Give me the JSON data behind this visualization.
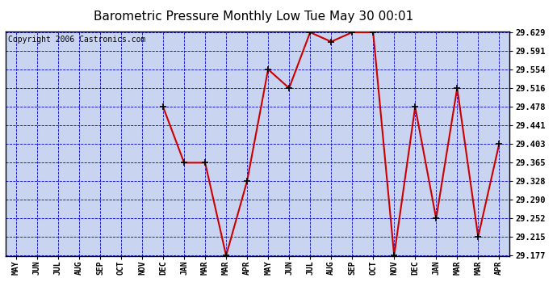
{
  "title": "Barometric Pressure Monthly Low Tue May 30 00:01",
  "copyright": "Copyright 2006 Castronics.com",
  "x_labels": [
    "MAY",
    "JUN",
    "JUL",
    "AUG",
    "SEP",
    "OCT",
    "NOV",
    "DEC",
    "JAN",
    "MAR",
    "MAR",
    "APR",
    "MAY",
    "JUN",
    "JUL",
    "AUG",
    "SEP",
    "OCT",
    "NOV",
    "DEC",
    "JAN",
    "MAR",
    "MAR",
    "APR"
  ],
  "y_values": [
    null,
    null,
    null,
    null,
    null,
    null,
    null,
    29.478,
    29.365,
    29.365,
    29.177,
    29.328,
    29.554,
    29.516,
    29.629,
    29.61,
    29.629,
    29.629,
    29.177,
    29.478,
    29.252,
    29.516,
    29.215,
    29.403
  ],
  "y_ticks": [
    29.177,
    29.215,
    29.252,
    29.29,
    29.328,
    29.365,
    29.403,
    29.441,
    29.478,
    29.516,
    29.554,
    29.591,
    29.629
  ],
  "y_min": 29.177,
  "y_max": 29.629,
  "line_color": "#cc0000",
  "marker_color": "#000000",
  "plot_bg_color": "#c8d4f0",
  "grid_color": "#0000cc",
  "title_fontsize": 11,
  "copyright_fontsize": 7
}
